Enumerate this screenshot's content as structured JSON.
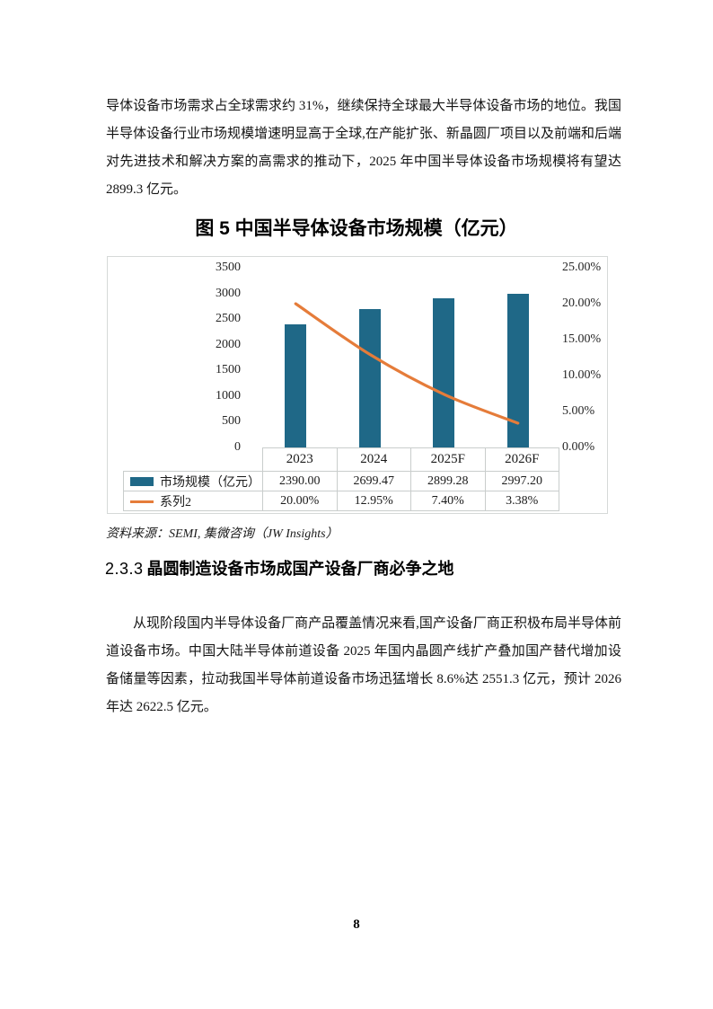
{
  "paragraphs": {
    "para1": "导体设备市场需求占全球需求约 31%，继续保持全球最大半导体设备市场的地位。我国半导体设备行业市场规模增速明显高于全球,在产能扩张、新晶圆厂项目以及前端和后端对先进技术和解决方案的高需求的推动下，2025 年中国半导体设备市场规模将有望达 2899.3 亿元。",
    "para2": "从现阶段国内半导体设备厂商产品覆盖情况来看,国产设备厂商正积极布局半导体前道设备市场。中国大陆半导体前道设备 2025 年国内晶圆产线扩产叠加国产替代增加设备储量等因素，拉动我国半导体前道设备市场迅猛增长 8.6%达 2551.3 亿元，预计 2026 年达 2622.5 亿元。"
  },
  "figure": {
    "title": "图 5  中国半导体设备市场规模（亿元）",
    "source": "资料来源：SEMI, 集微咨询（JW Insights）"
  },
  "chart_data": {
    "type": "bar",
    "subtype": "combo-bar-line",
    "title": "图 5 中国半导体设备市场规模（亿元）",
    "categories": [
      "2023",
      "2024",
      "2025F",
      "2026F"
    ],
    "series": [
      {
        "name": "市场规模（亿元）",
        "type": "bar",
        "axis": "left",
        "values": [
          2390.0,
          2699.47,
          2899.28,
          2997.2
        ],
        "value_labels": [
          "2390.00",
          "2699.47",
          "2899.28",
          "2997.20"
        ],
        "color": "#1f6887"
      },
      {
        "name": "系列2",
        "type": "line",
        "axis": "right",
        "values": [
          20.0,
          12.95,
          7.4,
          3.38
        ],
        "value_labels": [
          "20.00%",
          "12.95%",
          "7.40%",
          "3.38%"
        ],
        "color": "#e57c3a"
      }
    ],
    "left_axis": {
      "min": 0,
      "max": 3500,
      "ticks": [
        "3500",
        "3000",
        "2500",
        "2000",
        "1500",
        "1000",
        "500",
        "0"
      ]
    },
    "right_axis": {
      "min": 0,
      "max": 25,
      "ticks": [
        "25.00%",
        "20.00%",
        "15.00%",
        "10.00%",
        "5.00%",
        "0.00%"
      ]
    },
    "grid": false,
    "legend_position": "data-table-left",
    "data_table": true
  },
  "section": {
    "number": "2.3.3",
    "title": "晶圆制造设备市场成国产设备厂商必争之地"
  },
  "page": {
    "number": "8"
  }
}
